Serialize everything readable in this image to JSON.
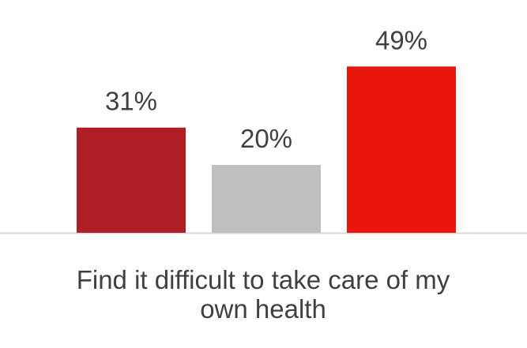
{
  "chart_data": {
    "type": "bar",
    "categories": [
      null,
      "Find it difficult to take care of my own health",
      null
    ],
    "values": [
      31,
      20,
      49
    ],
    "value_labels": [
      "31%",
      "20%",
      "49%"
    ],
    "colors": [
      "#b01e25",
      "#bfbfbf",
      "#e8160c"
    ]
  }
}
